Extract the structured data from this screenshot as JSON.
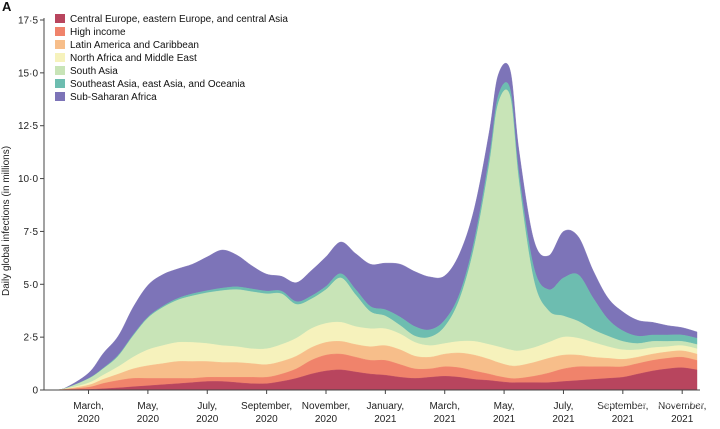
{
  "chart_data": {
    "type": "area",
    "stacked": true,
    "panel_label": "A",
    "title": "",
    "xlabel": "",
    "ylabel": "Daily global infections (in millions)",
    "ylim": [
      0,
      17.5
    ],
    "yticks": [
      0,
      2.5,
      5.0,
      7.5,
      10.0,
      12.5,
      15.0,
      17.5
    ],
    "ytick_labels": [
      "0",
      "2·5",
      "5·0",
      "7·5",
      "10·0",
      "12·5",
      "15·0",
      "17·5"
    ],
    "x_ticks": [
      {
        "t": 2,
        "label": [
          "March,",
          "2020"
        ]
      },
      {
        "t": 4,
        "label": [
          "May,",
          "2020"
        ]
      },
      {
        "t": 6,
        "label": [
          "July,",
          "2020"
        ]
      },
      {
        "t": 8,
        "label": [
          "September,",
          "2020"
        ]
      },
      {
        "t": 10,
        "label": [
          "November,",
          "2020"
        ]
      },
      {
        "t": 12,
        "label": [
          "January,",
          "2021"
        ]
      },
      {
        "t": 14,
        "label": [
          "March,",
          "2021"
        ]
      },
      {
        "t": 16,
        "label": [
          "May,",
          "2021"
        ]
      },
      {
        "t": 18,
        "label": [
          "July,",
          "2021"
        ]
      },
      {
        "t": 20,
        "label": [
          "September,",
          "2021"
        ]
      },
      {
        "t": 22,
        "label": [
          "November,",
          "2021"
        ]
      }
    ],
    "legend_position": "top-left",
    "x": [
      0.8,
      1.2,
      2,
      2.5,
      3,
      3.5,
      4,
      4.5,
      5,
      5.5,
      6,
      6.5,
      7,
      7.5,
      8,
      8.5,
      9,
      9.5,
      10,
      10.5,
      11,
      11.5,
      12,
      12.5,
      13,
      13.5,
      14,
      14.5,
      15,
      15.5,
      15.8,
      16.2,
      16.5,
      17,
      17.5,
      18,
      18.5,
      19,
      19.5,
      20,
      20.5,
      21,
      21.5,
      22,
      22.5
    ],
    "series": [
      {
        "name": "Central Europe, eastern Europe, and central Asia",
        "color": "#b8455e",
        "values": [
          0,
          0.01,
          0.03,
          0.06,
          0.1,
          0.15,
          0.2,
          0.25,
          0.3,
          0.35,
          0.4,
          0.4,
          0.35,
          0.3,
          0.3,
          0.4,
          0.55,
          0.75,
          0.9,
          0.95,
          0.85,
          0.75,
          0.7,
          0.6,
          0.55,
          0.6,
          0.65,
          0.6,
          0.5,
          0.45,
          0.4,
          0.35,
          0.35,
          0.35,
          0.35,
          0.4,
          0.45,
          0.5,
          0.55,
          0.6,
          0.75,
          0.9,
          1.0,
          1.05,
          0.95
        ]
      },
      {
        "name": "High income",
        "color": "#f0836b",
        "values": [
          0,
          0.02,
          0.1,
          0.25,
          0.35,
          0.4,
          0.35,
          0.3,
          0.25,
          0.2,
          0.2,
          0.2,
          0.25,
          0.3,
          0.3,
          0.35,
          0.45,
          0.65,
          0.75,
          0.75,
          0.7,
          0.65,
          0.7,
          0.6,
          0.45,
          0.4,
          0.45,
          0.45,
          0.4,
          0.3,
          0.25,
          0.2,
          0.2,
          0.3,
          0.45,
          0.6,
          0.65,
          0.6,
          0.55,
          0.5,
          0.5,
          0.5,
          0.5,
          0.5,
          0.45
        ]
      },
      {
        "name": "Latin America and Caribbean",
        "color": "#f7be8a",
        "values": [
          0,
          0.01,
          0.1,
          0.2,
          0.3,
          0.45,
          0.6,
          0.7,
          0.8,
          0.8,
          0.75,
          0.7,
          0.7,
          0.65,
          0.6,
          0.6,
          0.6,
          0.6,
          0.6,
          0.6,
          0.6,
          0.65,
          0.7,
          0.7,
          0.6,
          0.55,
          0.6,
          0.7,
          0.75,
          0.7,
          0.65,
          0.6,
          0.6,
          0.65,
          0.7,
          0.65,
          0.55,
          0.45,
          0.4,
          0.35,
          0.3,
          0.3,
          0.3,
          0.3,
          0.3
        ]
      },
      {
        "name": "North Africa and Middle East",
        "color": "#f6f2bc",
        "values": [
          0,
          0.01,
          0.1,
          0.2,
          0.35,
          0.55,
          0.75,
          0.85,
          0.9,
          0.9,
          0.85,
          0.8,
          0.75,
          0.7,
          0.75,
          0.8,
          0.85,
          0.9,
          0.9,
          0.9,
          0.85,
          0.85,
          0.8,
          0.75,
          0.65,
          0.55,
          0.5,
          0.55,
          0.65,
          0.7,
          0.75,
          0.75,
          0.7,
          0.7,
          0.75,
          0.85,
          0.8,
          0.7,
          0.55,
          0.45,
          0.35,
          0.3,
          0.25,
          0.25,
          0.25
        ]
      },
      {
        "name": "South Asia",
        "color": "#c8e4b7",
        "values": [
          0,
          0.02,
          0.2,
          0.3,
          0.5,
          1.0,
          1.5,
          1.8,
          2.0,
          2.2,
          2.4,
          2.6,
          2.7,
          2.7,
          2.6,
          2.4,
          1.6,
          1.4,
          1.6,
          2.1,
          1.5,
          0.8,
          0.6,
          0.4,
          0.3,
          0.4,
          0.8,
          2.0,
          4.5,
          8.5,
          11.5,
          12.0,
          8.0,
          3.2,
          1.5,
          1.0,
          0.8,
          0.6,
          0.5,
          0.4,
          0.3,
          0.3,
          0.25,
          0.2,
          0.2
        ]
      },
      {
        "name": "Southeast Asia, east Asia, and Oceania",
        "color": "#6dbdb0",
        "values": [
          0,
          0,
          0.02,
          0.03,
          0.05,
          0.05,
          0.05,
          0.06,
          0.08,
          0.1,
          0.1,
          0.12,
          0.13,
          0.13,
          0.13,
          0.13,
          0.13,
          0.14,
          0.15,
          0.2,
          0.25,
          0.25,
          0.3,
          0.4,
          0.45,
          0.35,
          0.3,
          0.25,
          0.3,
          0.35,
          0.35,
          0.35,
          0.4,
          0.6,
          1.0,
          1.8,
          2.2,
          1.5,
          0.8,
          0.5,
          0.35,
          0.3,
          0.3,
          0.3,
          0.3
        ]
      },
      {
        "name": "Sub-Saharan Africa",
        "color": "#7d74b8",
        "values": [
          0,
          0.02,
          0.25,
          0.7,
          0.9,
          1.3,
          1.5,
          1.5,
          1.4,
          1.4,
          1.6,
          1.8,
          1.5,
          1.1,
          0.8,
          0.7,
          0.9,
          1.2,
          1.4,
          1.5,
          1.7,
          2.0,
          2.2,
          2.5,
          2.6,
          2.5,
          2.1,
          1.9,
          1.5,
          1.2,
          1.0,
          0.9,
          1.1,
          1.3,
          1.6,
          2.2,
          1.8,
          1.3,
          1.0,
          0.9,
          0.75,
          0.6,
          0.45,
          0.35,
          0.3
        ]
      }
    ]
  },
  "watermark": "知乎 @InfoXMed"
}
